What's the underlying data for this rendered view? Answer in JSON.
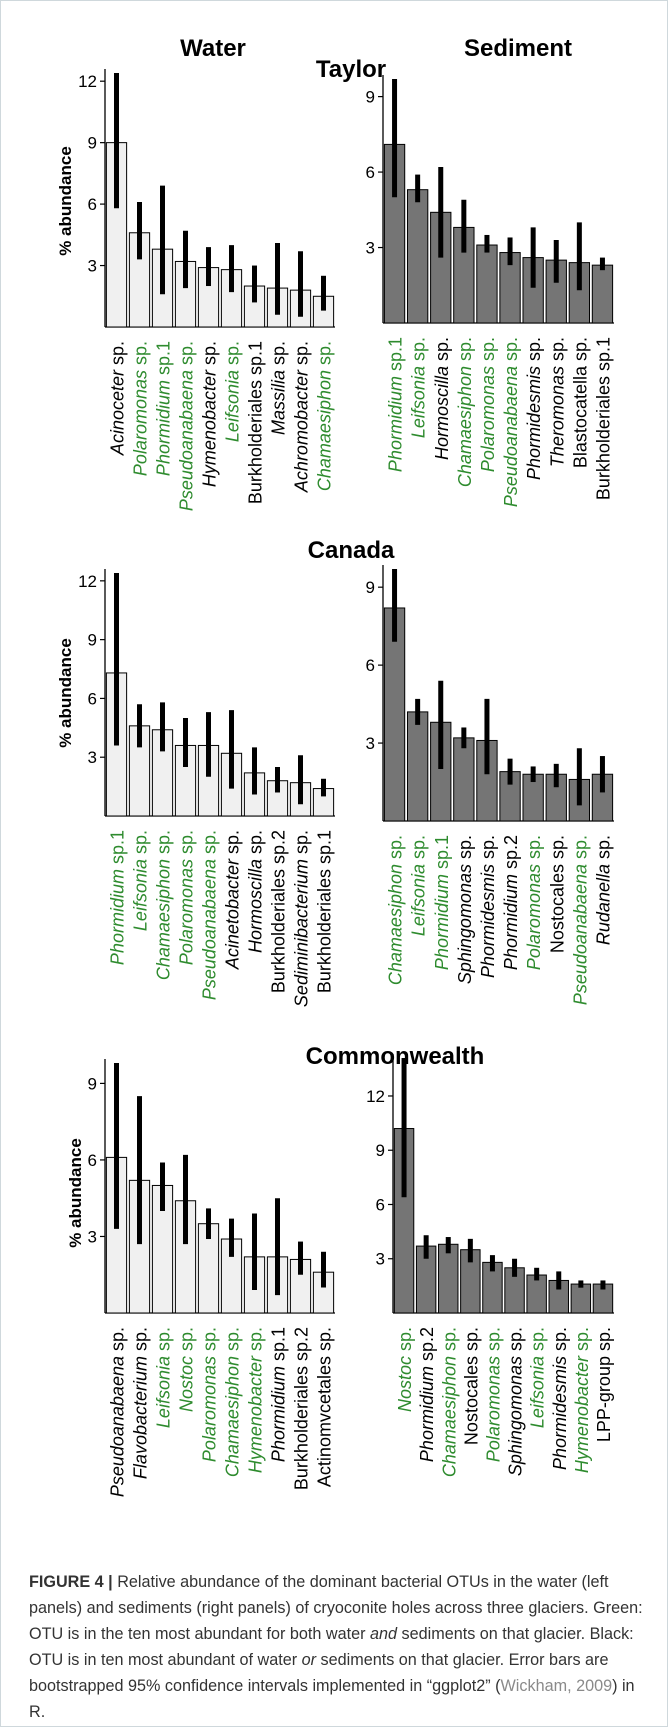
{
  "colors": {
    "water_fill": "#f0f0f0",
    "sediment_fill": "#757575",
    "bar_stroke": "#000000",
    "error_bar": "#000000",
    "label_green": "#2e8b2e",
    "label_black": "#000000"
  },
  "headers": {
    "left": "Water",
    "right": "Sediment"
  },
  "caption": {
    "label": "FIGURE 4",
    "sep": "|",
    "p1": "Relative abundance of the dominant bacterial OTUs in the water (left panels) and sediments (right panels) of cryoconite holes across three glaciers. Green: OTU is in the ten most abundant for both water",
    "and": "and",
    "p2": "sediments on that glacier. Black: OTU is in ten most abundant of water",
    "or": "or",
    "p3": "sediments on that glacier. Error bars are bootstrapped 95% confidence intervals implemented in “ggplot2” (",
    "cite": "Wickham, 2009",
    "p4": ") in R."
  },
  "chart_data": [
    {
      "type": "bar",
      "glacier": "Taylor",
      "panel": "Water",
      "title": "Taylor",
      "ylabel": "% abundance",
      "ylim": [
        0,
        12.4
      ],
      "ticks": [
        3,
        6,
        9,
        12
      ],
      "bars": [
        {
          "genus": "Acinoceter",
          "suffix": " sp.",
          "ital": true,
          "green": false,
          "value": 9.0,
          "lo": 5.8,
          "hi": 12.4
        },
        {
          "genus": "Polaromonas",
          "suffix": " sp.",
          "ital": true,
          "green": true,
          "value": 4.6,
          "lo": 3.3,
          "hi": 6.1
        },
        {
          "genus": "Phormidium",
          "suffix": " sp.1",
          "ital": true,
          "green": true,
          "value": 3.8,
          "lo": 1.6,
          "hi": 6.9
        },
        {
          "genus": "Pseudoanabaena",
          "suffix": " sp.",
          "ital": true,
          "green": true,
          "value": 3.2,
          "lo": 1.9,
          "hi": 4.7
        },
        {
          "genus": "Hymenobacter",
          "suffix": " sp.",
          "ital": true,
          "green": false,
          "value": 2.9,
          "lo": 2.0,
          "hi": 3.9
        },
        {
          "genus": "Leifsonia",
          "suffix": " sp.",
          "ital": true,
          "green": true,
          "value": 2.8,
          "lo": 1.7,
          "hi": 4.0
        },
        {
          "genus": "Burkholderiales sp.1",
          "suffix": "",
          "ital": false,
          "green": false,
          "value": 2.0,
          "lo": 1.2,
          "hi": 3.0
        },
        {
          "genus": "Massilia",
          "suffix": " sp.",
          "ital": true,
          "green": false,
          "value": 1.9,
          "lo": 0.6,
          "hi": 4.1
        },
        {
          "genus": "Achromobacter",
          "suffix": " sp.",
          "ital": true,
          "green": false,
          "value": 1.8,
          "lo": 0.5,
          "hi": 3.7
        },
        {
          "genus": "Chamaesiphon",
          "suffix": " sp.",
          "ital": true,
          "green": true,
          "value": 1.5,
          "lo": 0.8,
          "hi": 2.5
        }
      ]
    },
    {
      "type": "bar",
      "glacier": "Taylor",
      "panel": "Sediment",
      "ylim": [
        0,
        9.7
      ],
      "ticks": [
        3,
        6,
        9
      ],
      "bars": [
        {
          "genus": "Phormidium",
          "suffix": " sp.1",
          "ital": true,
          "green": true,
          "value": 7.1,
          "lo": 5.0,
          "hi": 9.7
        },
        {
          "genus": "Leifsonia",
          "suffix": " sp.",
          "ital": true,
          "green": true,
          "value": 5.3,
          "lo": 4.8,
          "hi": 5.9
        },
        {
          "genus": "Hormoscilla",
          "suffix": " sp.",
          "ital": true,
          "green": false,
          "value": 4.4,
          "lo": 2.6,
          "hi": 6.2
        },
        {
          "genus": "Chamaesiphon",
          "suffix": " sp.",
          "ital": true,
          "green": true,
          "value": 3.8,
          "lo": 2.8,
          "hi": 4.9
        },
        {
          "genus": "Polaromonas",
          "suffix": " sp.",
          "ital": true,
          "green": true,
          "value": 3.1,
          "lo": 2.8,
          "hi": 3.5
        },
        {
          "genus": "Pseudoanabaena",
          "suffix": " sp.",
          "ital": true,
          "green": true,
          "value": 2.8,
          "lo": 2.3,
          "hi": 3.4
        },
        {
          "genus": "Phormidesmis",
          "suffix": " sp.",
          "ital": true,
          "green": false,
          "value": 2.6,
          "lo": 1.4,
          "hi": 3.8
        },
        {
          "genus": "Theromonas",
          "suffix": " sp.",
          "ital": true,
          "green": false,
          "value": 2.5,
          "lo": 1.6,
          "hi": 3.3
        },
        {
          "genus": "Blastocatella sp.",
          "suffix": "",
          "ital": false,
          "green": false,
          "value": 2.4,
          "lo": 1.3,
          "hi": 4.0
        },
        {
          "genus": "Burkholderiales sp.1",
          "suffix": "",
          "ital": false,
          "green": false,
          "value": 2.3,
          "lo": 2.1,
          "hi": 2.6
        }
      ]
    },
    {
      "type": "bar",
      "glacier": "Canada",
      "panel": "Water",
      "title": "Canada",
      "ylabel": "% abundance",
      "ylim": [
        0,
        12.4
      ],
      "ticks": [
        3,
        6,
        9,
        12
      ],
      "bars": [
        {
          "genus": "Phormidium",
          "suffix": " sp.1",
          "ital": true,
          "green": true,
          "value": 7.3,
          "lo": 3.6,
          "hi": 12.4
        },
        {
          "genus": "Leifsonia",
          "suffix": " sp.",
          "ital": true,
          "green": true,
          "value": 4.6,
          "lo": 3.5,
          "hi": 5.7
        },
        {
          "genus": "Chamaesiphon",
          "suffix": " sp.",
          "ital": true,
          "green": true,
          "value": 4.4,
          "lo": 3.3,
          "hi": 5.8
        },
        {
          "genus": "Polaromonas",
          "suffix": " sp.",
          "ital": true,
          "green": true,
          "value": 3.6,
          "lo": 2.5,
          "hi": 5.0
        },
        {
          "genus": "Pseudoanabaena",
          "suffix": " sp.",
          "ital": true,
          "green": true,
          "value": 3.6,
          "lo": 2.0,
          "hi": 5.3
        },
        {
          "genus": "Acinetobacter",
          "suffix": " sp.",
          "ital": true,
          "green": false,
          "value": 3.2,
          "lo": 1.4,
          "hi": 5.4
        },
        {
          "genus": "Hormoscilla",
          "suffix": " sp.",
          "ital": true,
          "green": false,
          "value": 2.2,
          "lo": 1.1,
          "hi": 3.5
        },
        {
          "genus": "Burkholderiales sp.2",
          "suffix": "",
          "ital": false,
          "green": false,
          "value": 1.8,
          "lo": 1.2,
          "hi": 2.5
        },
        {
          "genus": "Sediminibacterium",
          "suffix": " sp.",
          "ital": true,
          "green": false,
          "value": 1.7,
          "lo": 0.6,
          "hi": 3.1
        },
        {
          "genus": "Burkholderiales sp.1",
          "suffix": "",
          "ital": false,
          "green": false,
          "value": 1.4,
          "lo": 1.0,
          "hi": 1.9
        }
      ]
    },
    {
      "type": "bar",
      "glacier": "Canada",
      "panel": "Sediment",
      "ylim": [
        0,
        9.7
      ],
      "ticks": [
        3,
        6,
        9
      ],
      "bars": [
        {
          "genus": "Chamaesiphon",
          "suffix": " sp.",
          "ital": true,
          "green": true,
          "value": 8.2,
          "lo": 6.9,
          "hi": 9.7
        },
        {
          "genus": "Leifsonia",
          "suffix": " sp.",
          "ital": true,
          "green": true,
          "value": 4.2,
          "lo": 3.7,
          "hi": 4.7
        },
        {
          "genus": "Phormidium",
          "suffix": " sp.1",
          "ital": true,
          "green": true,
          "value": 3.8,
          "lo": 2.0,
          "hi": 5.4
        },
        {
          "genus": "Sphingomonas",
          "suffix": " sp.",
          "ital": true,
          "green": false,
          "value": 3.2,
          "lo": 2.8,
          "hi": 3.6
        },
        {
          "genus": "Phormidesmis",
          "suffix": " sp.",
          "ital": true,
          "green": false,
          "value": 3.1,
          "lo": 1.8,
          "hi": 4.7
        },
        {
          "genus": "Phormidium",
          "suffix": " sp.2",
          "ital": true,
          "green": false,
          "value": 1.9,
          "lo": 1.4,
          "hi": 2.4
        },
        {
          "genus": "Polaromonas",
          "suffix": " sp.",
          "ital": true,
          "green": true,
          "value": 1.8,
          "lo": 1.5,
          "hi": 2.1
        },
        {
          "genus": "Nostocales sp.",
          "suffix": "",
          "ital": false,
          "green": false,
          "value": 1.8,
          "lo": 1.3,
          "hi": 2.2
        },
        {
          "genus": "Pseudoanabaena",
          "suffix": " sp.",
          "ital": true,
          "green": true,
          "value": 1.6,
          "lo": 0.6,
          "hi": 2.8
        },
        {
          "genus": "Rudanella",
          "suffix": " sp.",
          "ital": true,
          "green": false,
          "value": 1.8,
          "lo": 1.1,
          "hi": 2.5
        }
      ]
    },
    {
      "type": "bar",
      "glacier": "Commonwealth",
      "panel": "Water",
      "title": "Commonwealth",
      "ylabel": "% abundance",
      "ylim": [
        0,
        9.8
      ],
      "ticks": [
        3,
        6,
        9
      ],
      "bars": [
        {
          "genus": "Pseudoanabaena",
          "suffix": " sp.",
          "ital": true,
          "green": false,
          "value": 6.1,
          "lo": 3.3,
          "hi": 9.8
        },
        {
          "genus": "Flavobacterium",
          "suffix": " sp.",
          "ital": true,
          "green": false,
          "value": 5.2,
          "lo": 2.7,
          "hi": 8.5
        },
        {
          "genus": "Leifsonia",
          "suffix": " sp.",
          "ital": true,
          "green": true,
          "value": 5.0,
          "lo": 4.0,
          "hi": 5.9
        },
        {
          "genus": "Nostoc",
          "suffix": " sp.",
          "ital": true,
          "green": true,
          "value": 4.4,
          "lo": 2.7,
          "hi": 6.2
        },
        {
          "genus": "Polaromonas",
          "suffix": " sp.",
          "ital": true,
          "green": true,
          "value": 3.5,
          "lo": 2.9,
          "hi": 4.1
        },
        {
          "genus": "Chamaesiphon",
          "suffix": " sp.",
          "ital": true,
          "green": true,
          "value": 2.9,
          "lo": 2.2,
          "hi": 3.7
        },
        {
          "genus": "Hymenobacter",
          "suffix": " sp.",
          "ital": true,
          "green": true,
          "value": 2.2,
          "lo": 0.9,
          "hi": 3.9
        },
        {
          "genus": "Phormidium",
          "suffix": " sp.1",
          "ital": true,
          "green": false,
          "value": 2.2,
          "lo": 0.7,
          "hi": 4.5
        },
        {
          "genus": "Burkholderiales sp.2",
          "suffix": "",
          "ital": false,
          "green": false,
          "value": 2.1,
          "lo": 1.5,
          "hi": 2.8
        },
        {
          "genus": "Actinomvcetales sp.",
          "suffix": "",
          "ital": false,
          "green": false,
          "value": 1.6,
          "lo": 1.0,
          "hi": 2.4
        }
      ]
    },
    {
      "type": "bar",
      "glacier": "Commonwealth",
      "panel": "Sediment",
      "ylim": [
        0,
        14.1
      ],
      "ticks": [
        3,
        6,
        9,
        12
      ],
      "bars": [
        {
          "genus": "Nostoc",
          "suffix": " sp.",
          "ital": true,
          "green": true,
          "value": 10.2,
          "lo": 6.4,
          "hi": 14.1
        },
        {
          "genus": "Phormidium",
          "suffix": " sp.2",
          "ital": true,
          "green": false,
          "value": 3.7,
          "lo": 3.0,
          "hi": 4.3
        },
        {
          "genus": "Chamaesiphon",
          "suffix": " sp.",
          "ital": true,
          "green": true,
          "value": 3.8,
          "lo": 3.3,
          "hi": 4.2
        },
        {
          "genus": "Nostocales sp.",
          "suffix": "",
          "ital": false,
          "green": false,
          "value": 3.5,
          "lo": 2.8,
          "hi": 4.1
        },
        {
          "genus": "Polaromonas",
          "suffix": " sp.",
          "ital": true,
          "green": true,
          "value": 2.8,
          "lo": 2.3,
          "hi": 3.2
        },
        {
          "genus": "Sphingomonas",
          "suffix": " sp.",
          "ital": true,
          "green": false,
          "value": 2.5,
          "lo": 2.0,
          "hi": 3.0
        },
        {
          "genus": "Leifsonia",
          "suffix": " sp.",
          "ital": true,
          "green": true,
          "value": 2.1,
          "lo": 1.8,
          "hi": 2.5
        },
        {
          "genus": "Phormidesmis",
          "suffix": " sp.",
          "ital": true,
          "green": false,
          "value": 1.8,
          "lo": 1.3,
          "hi": 2.3
        },
        {
          "genus": "Hymenobacter",
          "suffix": " sp.",
          "ital": true,
          "green": true,
          "value": 1.6,
          "lo": 1.4,
          "hi": 1.8
        },
        {
          "genus": "LPP-group sp.",
          "suffix": "",
          "ital": false,
          "green": false,
          "value": 1.6,
          "lo": 1.3,
          "hi": 1.8
        }
      ]
    }
  ]
}
